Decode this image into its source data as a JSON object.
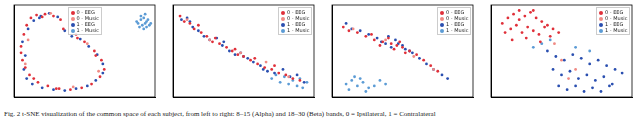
{
  "caption": "Fig. 2 t-SNE visualization of the common space of each subject, from left to right: 8–15 (Alpha) and 18–30 (Beta) bands, 0 = Ipsilateral, 1 = Contralateral",
  "chart_data": [
    {
      "type": "scatter",
      "xlim": [
        0,
        100
      ],
      "ylim": [
        0,
        100
      ],
      "tick_labels": false,
      "grid": false,
      "legend": "upper center",
      "series": [
        {
          "name": "0 - EEG",
          "color": "#e0303a",
          "x": [
            6,
            5,
            7,
            9,
            12,
            16,
            22,
            28,
            33,
            35,
            44,
            50,
            57,
            62,
            64,
            61,
            55,
            48,
            40,
            32,
            24,
            17,
            11,
            8,
            5,
            14,
            20,
            30,
            45,
            58
          ],
          "values": [
            40,
            55,
            68,
            78,
            86,
            89,
            90,
            88,
            84,
            74,
            68,
            60,
            50,
            40,
            30,
            22,
            14,
            10,
            8,
            9,
            12,
            16,
            24,
            32,
            48,
            20,
            87,
            9,
            64,
            45
          ]
        },
        {
          "name": "0 - Music",
          "color": "#f08a84",
          "x": [
            10,
            26,
            52,
            60,
            42,
            8
          ],
          "values": [
            62,
            91,
            58,
            28,
            11,
            36
          ]
        },
        {
          "name": "1 - EEG",
          "color": "#2a4fb0",
          "x": [
            8,
            6,
            10,
            14,
            19,
            25,
            31,
            36,
            41,
            47,
            53,
            59,
            63,
            63,
            58,
            52,
            44,
            36,
            28,
            20,
            13,
            9,
            7,
            18
          ],
          "values": [
            45,
            60,
            74,
            83,
            88,
            91,
            87,
            72,
            66,
            63,
            55,
            46,
            36,
            26,
            18,
            12,
            9,
            7,
            8,
            10,
            14,
            20,
            30,
            86
          ]
        },
        {
          "name": "1 - Music",
          "color": "#5b9bd5",
          "x": [
            88,
            90,
            92,
            94,
            96,
            89,
            91,
            93,
            95,
            90,
            92,
            94,
            97,
            87,
            93
          ],
          "values": [
            80,
            84,
            86,
            82,
            78,
            76,
            78,
            80,
            84,
            88,
            74,
            76,
            80,
            82,
            90
          ]
        }
      ]
    },
    {
      "type": "scatter",
      "xlim": [
        0,
        100
      ],
      "ylim": [
        0,
        100
      ],
      "tick_labels": false,
      "grid": false,
      "legend": "upper right",
      "series": [
        {
          "name": "0 - EEG",
          "color": "#e0303a",
          "x": [
            5,
            8,
            12,
            15,
            20,
            24,
            28,
            33,
            38,
            42,
            46,
            50,
            55,
            60,
            65,
            70,
            75,
            80,
            85,
            90,
            18,
            30,
            44,
            58,
            72
          ],
          "values": [
            88,
            82,
            80,
            74,
            70,
            66,
            60,
            58,
            54,
            50,
            46,
            44,
            40,
            36,
            32,
            30,
            26,
            24,
            20,
            18,
            78,
            64,
            52,
            42,
            34
          ]
        },
        {
          "name": "0 - Music",
          "color": "#f08a84",
          "x": [
            10,
            26,
            48,
            66,
            82
          ],
          "values": [
            84,
            62,
            48,
            38,
            22
          ]
        },
        {
          "name": "1 - EEG",
          "color": "#2a4fb0",
          "x": [
            6,
            10,
            14,
            18,
            22,
            26,
            31,
            35,
            40,
            44,
            48,
            53,
            57,
            62,
            67,
            72,
            78,
            83,
            88,
            93,
            12,
            36,
            50,
            64
          ],
          "values": [
            84,
            86,
            76,
            72,
            66,
            62,
            64,
            56,
            50,
            46,
            48,
            42,
            38,
            34,
            28,
            26,
            30,
            22,
            24,
            16,
            82,
            60,
            44,
            30
          ]
        },
        {
          "name": "1 - Music",
          "color": "#5b9bd5",
          "x": [
            70,
            76,
            82,
            88,
            92,
            95,
            85,
            79,
            73,
            90
          ],
          "values": [
            20,
            16,
            14,
            12,
            10,
            16,
            18,
            22,
            24,
            20
          ]
        }
      ]
    },
    {
      "type": "scatter",
      "xlim": [
        0,
        100
      ],
      "ylim": [
        0,
        100
      ],
      "tick_labels": false,
      "grid": false,
      "legend": "upper right",
      "series": [
        {
          "name": "0 - EEG",
          "color": "#e0303a",
          "x": [
            8,
            12,
            18,
            24,
            30,
            36,
            42,
            46,
            50,
            55,
            60,
            65,
            70,
            75,
            40,
            44,
            48,
            52,
            28,
            34
          ],
          "values": [
            76,
            72,
            70,
            66,
            62,
            60,
            58,
            56,
            54,
            50,
            46,
            40,
            34,
            28,
            64,
            52,
            60,
            48,
            68,
            56
          ]
        },
        {
          "name": "0 - Music",
          "color": "#f08a84",
          "x": [
            15,
            38,
            58,
            72
          ],
          "values": [
            74,
            62,
            44,
            30
          ]
        },
        {
          "name": "1 - EEG",
          "color": "#2a4fb0",
          "x": [
            10,
            14,
            20,
            26,
            32,
            38,
            42,
            47,
            52,
            57,
            62,
            67,
            72,
            78,
            82,
            45,
            50,
            55,
            35,
            40
          ],
          "values": [
            80,
            74,
            72,
            68,
            64,
            58,
            54,
            58,
            52,
            48,
            42,
            36,
            30,
            24,
            20,
            62,
            56,
            50,
            60,
            66
          ]
        },
        {
          "name": "1 - Music",
          "color": "#5b9bd5",
          "x": [
            10,
            14,
            18,
            22,
            26,
            12,
            16,
            20,
            24,
            30,
            34,
            38
          ],
          "values": [
            14,
            18,
            12,
            16,
            10,
            8,
            22,
            20,
            6,
            12,
            18,
            14
          ]
        }
      ]
    },
    {
      "type": "scatter",
      "xlim": [
        0,
        100
      ],
      "ylim": [
        0,
        100
      ],
      "tick_labels": false,
      "grid": false,
      "legend": "upper right",
      "series": [
        {
          "name": "0 - EEG",
          "color": "#e0303a",
          "x": [
            8,
            12,
            16,
            20,
            24,
            28,
            32,
            36,
            40,
            44,
            10,
            14,
            18,
            22,
            26,
            30,
            34,
            38,
            15,
            25,
            35,
            20,
            30,
            42,
            48
          ],
          "values": [
            80,
            86,
            90,
            84,
            88,
            92,
            86,
            82,
            78,
            74,
            70,
            74,
            78,
            70,
            76,
            72,
            68,
            76,
            62,
            64,
            60,
            94,
            94,
            66,
            70
          ]
        },
        {
          "name": "0 - Music",
          "color": "#f08a84",
          "x": [
            50,
            60,
            55,
            45
          ],
          "values": [
            40,
            30,
            20,
            58
          ]
        },
        {
          "name": "1 - EEG",
          "color": "#2a4fb0",
          "x": [
            40,
            46,
            52,
            58,
            64,
            70,
            76,
            82,
            88,
            93,
            44,
            50,
            56,
            62,
            68,
            74,
            80,
            86,
            48,
            54,
            60,
            66,
            72,
            78,
            84
          ],
          "values": [
            50,
            44,
            40,
            46,
            42,
            36,
            40,
            34,
            30,
            26,
            30,
            24,
            28,
            20,
            24,
            18,
            22,
            14,
            12,
            8,
            12,
            6,
            10,
            6,
            12
          ]
        },
        {
          "name": "1 - Music",
          "color": "#5b9bd5",
          "x": [
            36,
            42,
            30,
            60,
            70
          ],
          "values": [
            58,
            62,
            54,
            54,
            50
          ]
        }
      ]
    }
  ]
}
